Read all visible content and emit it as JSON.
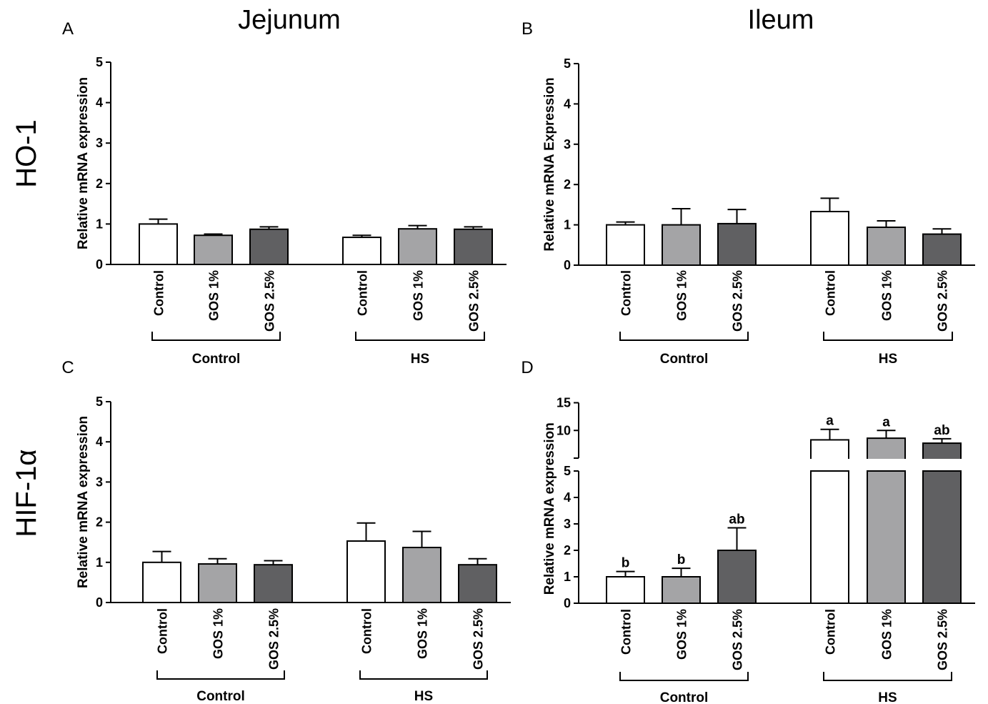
{
  "column_titles": [
    "Jejunum",
    "Ileum"
  ],
  "row_titles": [
    "HO-1",
    "HIF-1α"
  ],
  "colors": {
    "Control": "#ffffff",
    "GOS 1%": "#a4a4a6",
    "GOS 2.5%": "#606062"
  },
  "chart_data": [
    {
      "panel": "A",
      "type": "bar",
      "ylabel": "Relative mRNA expression",
      "ylim": [
        0,
        5
      ],
      "yticks": [
        0,
        1,
        2,
        3,
        4,
        5
      ],
      "groups": [
        {
          "name": "Control",
          "bars": [
            {
              "label": "Control",
              "value": 1.0,
              "error": 0.12
            },
            {
              "label": "GOS 1%",
              "value": 0.72,
              "error": 0.03
            },
            {
              "label": "GOS 2.5%",
              "value": 0.87,
              "error": 0.06
            }
          ]
        },
        {
          "name": "HS",
          "bars": [
            {
              "label": "Control",
              "value": 0.67,
              "error": 0.05
            },
            {
              "label": "GOS 1%",
              "value": 0.88,
              "error": 0.08
            },
            {
              "label": "GOS 2.5%",
              "value": 0.87,
              "error": 0.06
            }
          ]
        }
      ]
    },
    {
      "panel": "B",
      "type": "bar",
      "ylabel": "Relative mRNA Expression",
      "ylim": [
        0,
        5
      ],
      "yticks": [
        0,
        1,
        2,
        3,
        4,
        5
      ],
      "groups": [
        {
          "name": "Control",
          "bars": [
            {
              "label": "Control",
              "value": 1.0,
              "error": 0.07
            },
            {
              "label": "GOS 1%",
              "value": 1.0,
              "error": 0.4
            },
            {
              "label": "GOS 2.5%",
              "value": 1.03,
              "error": 0.35
            }
          ]
        },
        {
          "name": "HS",
          "bars": [
            {
              "label": "Control",
              "value": 1.33,
              "error": 0.33
            },
            {
              "label": "GOS 1%",
              "value": 0.94,
              "error": 0.16
            },
            {
              "label": "GOS 2.5%",
              "value": 0.77,
              "error": 0.13
            }
          ]
        }
      ]
    },
    {
      "panel": "C",
      "type": "bar",
      "ylabel": "Relative mRNA expression",
      "ylim": [
        0,
        5
      ],
      "yticks": [
        0,
        1,
        2,
        3,
        4,
        5
      ],
      "groups": [
        {
          "name": "Control",
          "bars": [
            {
              "label": "Control",
              "value": 1.0,
              "error": 0.27
            },
            {
              "label": "GOS 1%",
              "value": 0.96,
              "error": 0.13
            },
            {
              "label": "GOS 2.5%",
              "value": 0.94,
              "error": 0.1
            }
          ]
        },
        {
          "name": "HS",
          "bars": [
            {
              "label": "Control",
              "value": 1.53,
              "error": 0.45
            },
            {
              "label": "GOS 1%",
              "value": 1.37,
              "error": 0.4
            },
            {
              "label": "GOS 2.5%",
              "value": 0.94,
              "error": 0.15
            }
          ]
        }
      ]
    },
    {
      "panel": "D",
      "type": "bar",
      "ylabel": "Relative mRNA expression",
      "ylim": [
        0,
        15
      ],
      "yticks": [
        0,
        1,
        2,
        3,
        4,
        5,
        10,
        15
      ],
      "axis_break": [
        5,
        7
      ],
      "groups": [
        {
          "name": "Control",
          "bars": [
            {
              "label": "Control",
              "value": 1.0,
              "error": 0.2,
              "sig": "b"
            },
            {
              "label": "GOS 1%",
              "value": 1.0,
              "error": 0.32,
              "sig": "b"
            },
            {
              "label": "GOS 2.5%",
              "value": 2.0,
              "error": 0.85,
              "sig": "ab"
            }
          ]
        },
        {
          "name": "HS",
          "bars": [
            {
              "label": "Control",
              "value": 8.3,
              "error": 1.9,
              "sig": "a"
            },
            {
              "label": "GOS 1%",
              "value": 8.6,
              "error": 1.4,
              "sig": "a"
            },
            {
              "label": "GOS 2.5%",
              "value": 7.7,
              "error": 0.8,
              "sig": "ab"
            }
          ]
        }
      ]
    }
  ]
}
